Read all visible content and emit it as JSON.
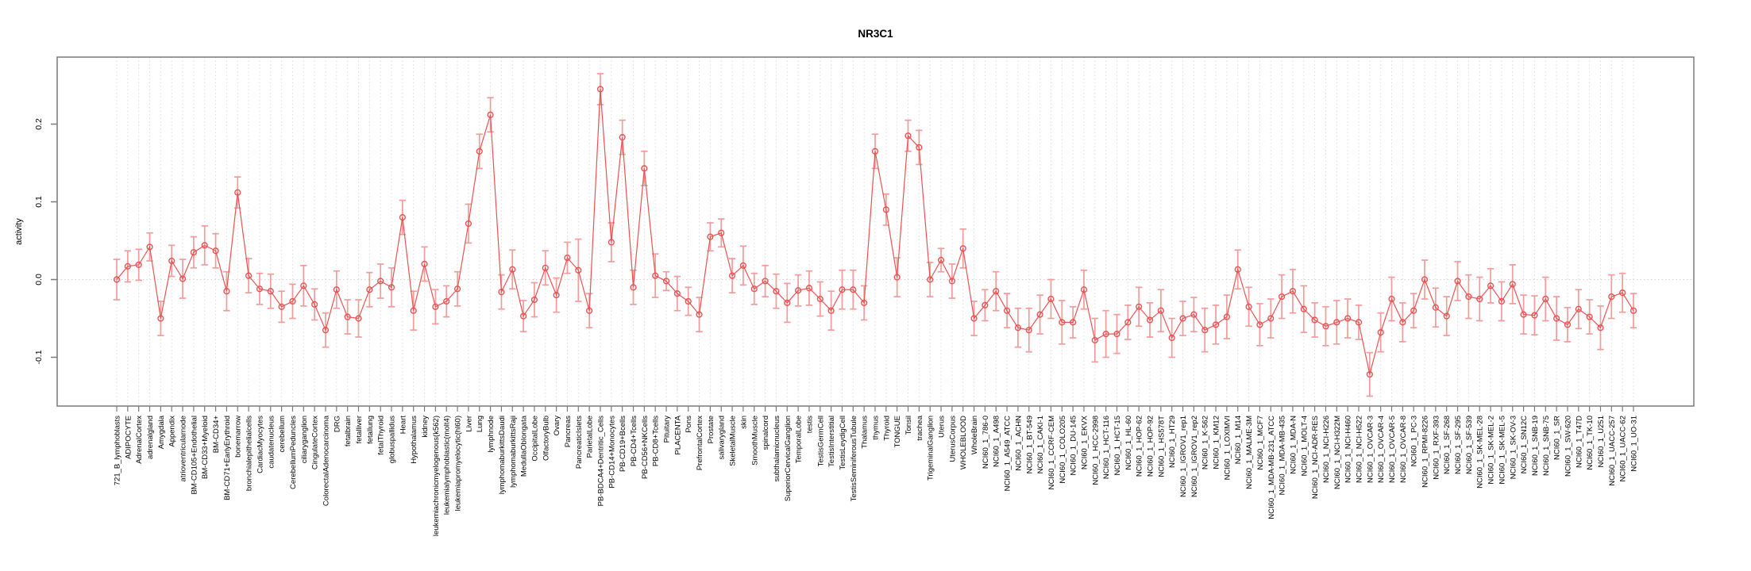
{
  "window": {
    "title": "NR3C1 activity plot"
  },
  "colors": {
    "point_line": "#e85252",
    "error_bar": "#f19b9b",
    "grid_dotted": "#dcdcdc",
    "zero_line_dotted": "#d0d0d0",
    "axis_box": "#7a7a7a",
    "text": "#000000",
    "background": "#ffffff"
  },
  "chart_data": {
    "type": "line",
    "title": "NR3C1",
    "xlabel": "",
    "ylabel": "activity",
    "yticks": [
      0.2,
      0.1,
      0.0,
      -0.1
    ],
    "ylim": [
      -0.16,
      0.285
    ],
    "grid": "vertical dotted gridline at every category; dotted horizontal line at y=0 only",
    "legend_position": "none",
    "marker": "open-circle",
    "has_error_bars": true,
    "categories": [
      "721_B_lymphoblasts",
      "ADIPOCYTE",
      "AdrenalCortex",
      "adrenalgland",
      "Amygdala",
      "Appendix",
      "atrioventricularnode",
      "BM-CD105+Endothelial",
      "BM-CD33+Myeloid",
      "BM-CD34+",
      "BM-CD71+EarlyErythroid",
      "bonemarrow",
      "bronchialepithelialcells",
      "CardiacMyocytes",
      "caudatenucleus",
      "cerebellum",
      "CerebellumPeduncles",
      "ciliaryganglion",
      "CingulateCortex",
      "ColorectalAdenocarcinoma",
      "DRG",
      "fetalbrain",
      "fetalliver",
      "fetallung",
      "fetalThyroid",
      "globuspallidus",
      "Heart",
      "Hypothalamus",
      "kidney",
      "leukemiachronicmyelogenous(k562)",
      "leukemialymphoblastic(molt4)",
      "leukemiapromyelocytic(hl60)",
      "Liver",
      "Lung",
      "lymphnode",
      "lymphomaburkittsDaudi",
      "lymphomaburkittsRaji",
      "MedullaOblongata",
      "OccipitalLobe",
      "OlfactoryBulb",
      "Ovary",
      "Pancreas",
      "PancreaticIslets",
      "ParietalLobe",
      "PB-BDCA4+Dentritic_Cells",
      "PB-CD14+Monocytes",
      "PB-CD19+Bcells",
      "PB-CD4+Tcells",
      "PB-CD56+NKCells",
      "PB-CD8+Tcells",
      "Pituitary",
      "PLACENTA",
      "Pons",
      "PrefrontalCortex",
      "Prostate",
      "salivarygland",
      "SkeletalMuscle",
      "skin",
      "SmoothMuscle",
      "spinalcord",
      "subthalamicnucleus",
      "SuperiorCervicalGanglion",
      "TemporalLobe",
      "testis",
      "TestisGermCell",
      "TestisInterstitial",
      "TestisLeydigCell",
      "TestisSeminiferousTubule",
      "Thalamus",
      "thymus",
      "Thyroid",
      "TONGUE",
      "Tonsil",
      "trachea",
      "TrigeminalGanglion",
      "Uterus",
      "UterusCorpus",
      "WHOLEBLOOD",
      "WholeBrain",
      "NCI60_1_786-0",
      "NCI60_1_A498",
      "NCI60_1_A549_ATCC",
      "NCI60_1_ACHN",
      "NCI60_1_BT-549",
      "NCI60_1_CAKI-1",
      "NCI60_1_CCRF-CEM",
      "NCI60_1_COLO205",
      "NCI60_1_DU-145",
      "NCI60_1_EKVX",
      "NCI60_1_HCC-2998",
      "NCI60_1_HCT-116",
      "NCI60_1_HCT-15",
      "NCI60_1_HL-60",
      "NCI60_1_HOP-62",
      "NCI60_1_HOP-92",
      "NCI60_1_HS578T",
      "NCI60_1_HT29",
      "NCI60_1_IGROV1_rep1",
      "NCI60_1_IGROV1_rep2",
      "NCI60_1_K-562",
      "NCI60_1_KM12",
      "NCI60_1_LOXIMVI",
      "NCI60_1_M14",
      "NCI60_1_MALME-3M",
      "NCI60_1_MCF7",
      "NCI60_1_MDA-MB-231_ATCC",
      "NCI60_1_MDA-MB-435",
      "NCI60_1_MDA-N",
      "NCI60_1_MOLT-4",
      "NCI60_1_NCI-ADR-RES",
      "NCI60_1_NCI-H226",
      "NCI60_1_NCI-H322M",
      "NCI60_1_NCI-H460",
      "NCI60_1_NCI-H522",
      "NCI60_1_OVCAR-3",
      "NCI60_1_OVCAR-4",
      "NCI60_1_OVCAR-5",
      "NCI60_1_OVCAR-8",
      "NCI60_1_PC-3",
      "NCI60_1_RPMI-8226",
      "NCI60_1_RXF-393",
      "NCI60_1_SF-268",
      "NCI60_1_SF-295",
      "NCI60_1_SF-539",
      "NCI60_1_SK-MEL-28",
      "NCI60_1_SK-MEL-2",
      "NCI60_1_SK-MEL-5",
      "NCI60_1_SK-OV-3",
      "NCI60_1_SN12C",
      "NCI60_1_SNB-19",
      "NCI60_1_SNB-75",
      "NCI60_1_SR",
      "NCI60_1_SW-620",
      "NCI60_1_T47D",
      "NCI60_1_TK-10",
      "NCI60_1_U251",
      "NCI60_1_UACC-257",
      "NCI60_1_UACC-62",
      "NCI60_1_UO-31"
    ],
    "values": [
      0.0,
      0.017,
      0.019,
      0.042,
      -0.05,
      0.024,
      0.001,
      0.035,
      0.044,
      0.037,
      -0.015,
      0.112,
      0.005,
      -0.012,
      -0.015,
      -0.035,
      -0.028,
      -0.008,
      -0.032,
      -0.065,
      -0.013,
      -0.048,
      -0.05,
      -0.013,
      -0.002,
      -0.01,
      0.08,
      -0.04,
      0.02,
      -0.035,
      -0.028,
      -0.012,
      0.072,
      0.165,
      0.212,
      -0.016,
      0.013,
      -0.047,
      -0.026,
      0.015,
      -0.02,
      0.028,
      0.012,
      -0.04,
      0.245,
      0.048,
      0.183,
      -0.01,
      0.143,
      0.005,
      -0.002,
      -0.018,
      -0.028,
      -0.045,
      0.055,
      0.06,
      0.005,
      0.018,
      -0.012,
      -0.002,
      -0.015,
      -0.03,
      -0.014,
      -0.011,
      -0.025,
      -0.04,
      -0.013,
      -0.013,
      -0.03,
      0.165,
      0.09,
      0.003,
      0.185,
      0.17,
      0.0,
      0.025,
      -0.002,
      0.04,
      -0.05,
      -0.033,
      -0.015,
      -0.04,
      -0.062,
      -0.065,
      -0.045,
      -0.025,
      -0.055,
      -0.055,
      -0.013,
      -0.078,
      -0.07,
      -0.07,
      -0.055,
      -0.035,
      -0.052,
      -0.04,
      -0.075,
      -0.05,
      -0.045,
      -0.065,
      -0.058,
      -0.048,
      0.013,
      -0.035,
      -0.058,
      -0.05,
      -0.022,
      -0.015,
      -0.038,
      -0.052,
      -0.06,
      -0.055,
      -0.05,
      -0.055,
      -0.122,
      -0.068,
      -0.025,
      -0.055,
      -0.04,
      0.0,
      -0.036,
      -0.047,
      -0.002,
      -0.022,
      -0.025,
      -0.008,
      -0.028,
      -0.006,
      -0.045,
      -0.046,
      -0.025,
      -0.05,
      -0.058,
      -0.038,
      -0.048,
      -0.062,
      -0.022,
      -0.017,
      -0.04
    ],
    "errors": [
      0.026,
      0.02,
      0.02,
      0.018,
      0.022,
      0.02,
      0.025,
      0.02,
      0.025,
      0.022,
      0.025,
      0.02,
      0.022,
      0.02,
      0.022,
      0.02,
      0.022,
      0.026,
      0.02,
      0.022,
      0.024,
      0.022,
      0.024,
      0.022,
      0.022,
      0.025,
      0.022,
      0.025,
      0.022,
      0.022,
      0.02,
      0.022,
      0.025,
      0.022,
      0.022,
      0.022,
      0.025,
      0.02,
      0.022,
      0.022,
      0.022,
      0.02,
      0.04,
      0.022,
      0.02,
      0.025,
      0.022,
      0.022,
      0.022,
      0.028,
      0.012,
      0.022,
      0.018,
      0.022,
      0.018,
      0.018,
      0.022,
      0.025,
      0.02,
      0.02,
      0.022,
      0.025,
      0.02,
      0.022,
      0.022,
      0.025,
      0.025,
      0.025,
      0.022,
      0.022,
      0.02,
      0.025,
      0.02,
      0.022,
      0.022,
      0.015,
      0.022,
      0.025,
      0.022,
      0.02,
      0.025,
      0.022,
      0.025,
      0.028,
      0.025,
      0.025,
      0.028,
      0.02,
      0.025,
      0.028,
      0.03,
      0.025,
      0.022,
      0.025,
      0.022,
      0.027,
      0.025,
      0.022,
      0.022,
      0.028,
      0.025,
      0.028,
      0.025,
      0.025,
      0.027,
      0.025,
      0.028,
      0.028,
      0.03,
      0.022,
      0.025,
      0.028,
      0.025,
      0.022,
      0.028,
      0.025,
      0.028,
      0.025,
      0.022,
      0.025,
      0.025,
      0.025,
      0.025,
      0.028,
      0.028,
      0.022,
      0.025,
      0.025,
      0.025,
      0.025,
      0.028,
      0.028,
      0.022,
      0.025,
      0.022,
      0.028,
      0.028,
      0.025,
      0.022
    ]
  }
}
